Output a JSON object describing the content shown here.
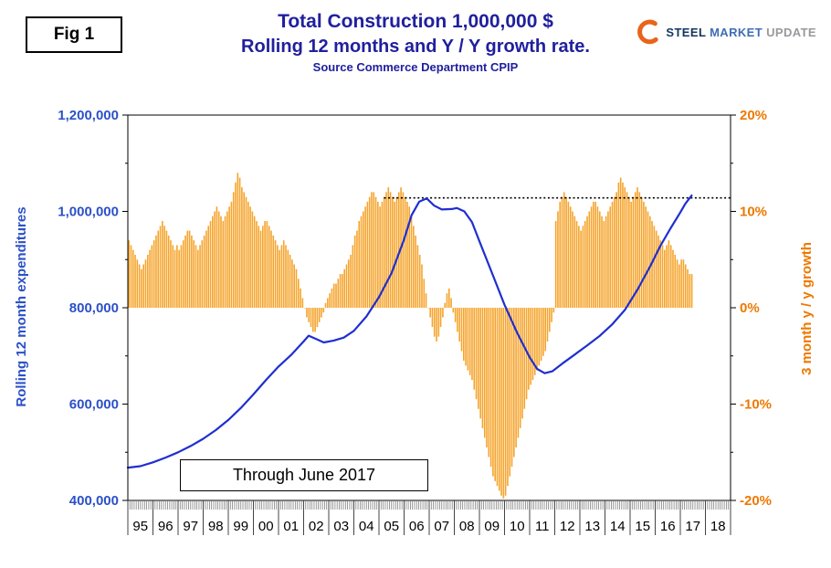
{
  "fig_label": "Fig 1",
  "header": {
    "title_line1": "Total Construction 1,000,000 $",
    "title_line2": "Rolling 12 months and Y / Y growth rate.",
    "source_line": "Source Commerce Department CPIP"
  },
  "logo": {
    "word1": "STEEL",
    "word2": "MARKET",
    "word3": "UPDATE"
  },
  "annotation_box": {
    "label": "Through June 2017"
  },
  "colors": {
    "title_blue": "#20209E",
    "axis_blue": "#2B50C8",
    "line_blue": "#1F2FD0",
    "bar_orange": "#F5A42C",
    "axis_orange": "#EE7800"
  },
  "chart_data": {
    "type": "combo",
    "title": "Total Construction 1,000,000 $ — Rolling 12 months and Y / Y growth rate",
    "subtitle": "Source Commerce Department CPIP",
    "x_axis": {
      "domain_start": 1995,
      "domain_end": 2019,
      "year_labels": [
        "95",
        "96",
        "97",
        "98",
        "99",
        "00",
        "01",
        "02",
        "03",
        "04",
        "05",
        "06",
        "07",
        "08",
        "09",
        "10",
        "11",
        "12",
        "13",
        "14",
        "15",
        "16",
        "17",
        "18"
      ]
    },
    "left_axis": {
      "label": "Rolling 12 month expenditures",
      "min": 400000,
      "max": 1200000,
      "tick_step": 200000,
      "tick_labels": [
        "400,000",
        "600,000",
        "800,000",
        "1,000,000",
        "1,200,000"
      ]
    },
    "right_axis": {
      "label": "3 month y / y growth",
      "min": -20,
      "max": 20,
      "tick_step": 10,
      "tick_labels": [
        "-20%",
        "-10%",
        "0%",
        "10%",
        "20%"
      ]
    },
    "series": [
      {
        "name": "Rolling 12 month expenditures",
        "type": "line",
        "axis": "left",
        "points": [
          [
            1995.0,
            468000
          ],
          [
            1995.5,
            471000
          ],
          [
            1996.0,
            479000
          ],
          [
            1996.5,
            489000
          ],
          [
            1997.0,
            500000
          ],
          [
            1997.5,
            513000
          ],
          [
            1998.0,
            528000
          ],
          [
            1998.5,
            546000
          ],
          [
            1999.0,
            567000
          ],
          [
            1999.5,
            592000
          ],
          [
            2000.0,
            620000
          ],
          [
            2000.5,
            650000
          ],
          [
            2001.0,
            678000
          ],
          [
            2001.5,
            702000
          ],
          [
            2002.0,
            730000
          ],
          [
            2002.2,
            742000
          ],
          [
            2002.5,
            735000
          ],
          [
            2002.8,
            728000
          ],
          [
            2003.2,
            732000
          ],
          [
            2003.6,
            738000
          ],
          [
            2004.0,
            752000
          ],
          [
            2004.5,
            782000
          ],
          [
            2005.0,
            822000
          ],
          [
            2005.5,
            872000
          ],
          [
            2006.0,
            942000
          ],
          [
            2006.3,
            992000
          ],
          [
            2006.6,
            1020000
          ],
          [
            2006.9,
            1027000
          ],
          [
            2007.2,
            1012000
          ],
          [
            2007.5,
            1004000
          ],
          [
            2007.9,
            1005000
          ],
          [
            2008.1,
            1007000
          ],
          [
            2008.4,
            1000000
          ],
          [
            2008.7,
            978000
          ],
          [
            2009.0,
            938000
          ],
          [
            2009.5,
            872000
          ],
          [
            2010.0,
            806000
          ],
          [
            2010.5,
            748000
          ],
          [
            2011.0,
            697000
          ],
          [
            2011.3,
            673000
          ],
          [
            2011.6,
            664000
          ],
          [
            2011.9,
            668000
          ],
          [
            2012.3,
            684000
          ],
          [
            2012.8,
            703000
          ],
          [
            2013.3,
            722000
          ],
          [
            2013.8,
            742000
          ],
          [
            2014.3,
            766000
          ],
          [
            2014.8,
            796000
          ],
          [
            2015.3,
            838000
          ],
          [
            2015.8,
            886000
          ],
          [
            2016.2,
            928000
          ],
          [
            2016.6,
            964000
          ],
          [
            2017.0,
            998000
          ],
          [
            2017.2,
            1016000
          ],
          [
            2017.45,
            1033000
          ]
        ]
      },
      {
        "name": "3 month y / y growth",
        "type": "bar",
        "axis": "right",
        "start": "1995-01",
        "end": "2017-06",
        "monthly_values": [
          7,
          6.5,
          6,
          5.5,
          5,
          4.5,
          4,
          4.5,
          5,
          5.5,
          6,
          6.5,
          7,
          7.5,
          8,
          8.5,
          9,
          8.5,
          8,
          7.5,
          7,
          6.5,
          6,
          6.5,
          6,
          6.5,
          7,
          7.5,
          8,
          8,
          7.5,
          7,
          6.5,
          6,
          6.5,
          7,
          7.5,
          8,
          8.5,
          9,
          9.5,
          10,
          10.5,
          10,
          9.5,
          9,
          9.5,
          10,
          10.5,
          11,
          12,
          13,
          14,
          13.5,
          12.5,
          12,
          11.5,
          11,
          10.5,
          10,
          9.5,
          9,
          8.5,
          8,
          8.5,
          9,
          9,
          8.5,
          8,
          7.5,
          7,
          6.5,
          6,
          6.5,
          7,
          6.5,
          6,
          5.5,
          5,
          4.5,
          4,
          3,
          2,
          1,
          0,
          -1,
          -1.5,
          -2,
          -2.5,
          -2.5,
          -2,
          -1.5,
          -1,
          -0.5,
          0.5,
          1,
          1.5,
          2,
          2.5,
          2.5,
          3,
          3.5,
          3.5,
          4,
          4.5,
          5,
          5.5,
          6.5,
          7.5,
          8,
          9,
          9.5,
          10,
          10.5,
          11,
          11.5,
          12,
          12,
          11.5,
          11,
          10.5,
          11,
          11.5,
          12,
          12.5,
          12,
          11.5,
          11,
          11.5,
          12,
          12.5,
          12,
          11.5,
          11,
          10.5,
          9.5,
          8.5,
          7.5,
          6.5,
          5.5,
          4.5,
          3,
          1.5,
          0,
          -1,
          -2,
          -3,
          -3.5,
          -3,
          -2,
          -1,
          0.5,
          1.5,
          2,
          1,
          -0.5,
          -1.5,
          -2.5,
          -3.5,
          -4.5,
          -5.5,
          -6,
          -6.5,
          -7,
          -7.5,
          -8.5,
          -9.5,
          -10.5,
          -11.5,
          -12.5,
          -13.5,
          -14.5,
          -15.5,
          -16.5,
          -17.5,
          -18,
          -18.5,
          -19,
          -19.5,
          -19.8,
          -19.5,
          -18.5,
          -17.5,
          -16.5,
          -15.5,
          -14.5,
          -13.5,
          -12.5,
          -11.5,
          -10.5,
          -9.5,
          -8.5,
          -8,
          -7.5,
          -7,
          -6.5,
          -6,
          -5.5,
          -5,
          -4.5,
          -3.5,
          -2.5,
          -1.5,
          -0.5,
          9,
          10,
          11,
          11.5,
          12,
          11.5,
          11,
          10.5,
          10,
          9.5,
          9,
          8.5,
          8,
          8.5,
          9,
          9.5,
          10,
          10.5,
          11,
          11,
          10.5,
          10,
          9.5,
          9,
          9.5,
          10,
          10.5,
          11,
          11.5,
          12,
          13,
          13.5,
          13,
          12.5,
          12,
          11.5,
          11,
          11.5,
          12,
          12.5,
          12,
          11.5,
          11,
          10.5,
          10,
          9.5,
          9,
          8.5,
          8,
          7.5,
          7,
          6.5,
          6,
          6.5,
          7,
          6.5,
          6,
          5.5,
          5,
          4.5,
          5,
          5,
          4.5,
          4,
          3.5,
          3.5
        ]
      }
    ],
    "reference_line": {
      "axis": "left",
      "value": 1028000,
      "x_start": 2005.2,
      "x_end": 2019,
      "style": "dotted",
      "color": "#000000"
    },
    "legend": "none",
    "grid": "off"
  }
}
